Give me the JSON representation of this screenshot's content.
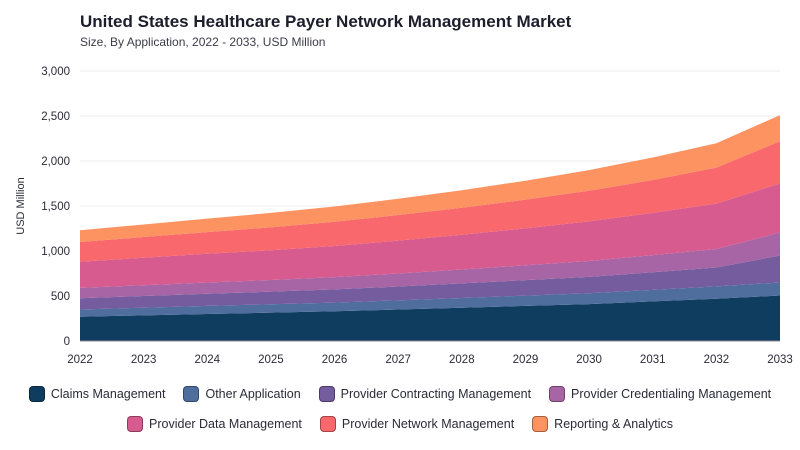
{
  "header": {
    "title": "United States Healthcare Payer Network Management Market",
    "subtitle": "Size, By Application, 2022 - 2033, USD Million"
  },
  "chart_data": {
    "type": "area",
    "stacked": true,
    "x": [
      "2022",
      "2023",
      "2024",
      "2025",
      "2026",
      "2027",
      "2028",
      "2029",
      "2030",
      "2031",
      "2032",
      "2033"
    ],
    "ylabel": "USD Million",
    "ylim": [
      0,
      3000
    ],
    "yticks": [
      "0",
      "500",
      "1,000",
      "1,500",
      "2,000",
      "2,500",
      "3,000"
    ],
    "grid": true,
    "legend_position": "bottom",
    "series": [
      {
        "name": "Claims Management",
        "color": "#0e3d5f",
        "values": [
          270,
          285,
          300,
          315,
          330,
          350,
          370,
          390,
          410,
          440,
          470,
          505
        ]
      },
      {
        "name": "Other Application",
        "color": "#4f6e9e",
        "values": [
          80,
          85,
          90,
          93,
          97,
          102,
          108,
          114,
          120,
          128,
          137,
          145
        ]
      },
      {
        "name": "Provider Contracting Management",
        "color": "#745c9f",
        "values": [
          125,
          130,
          135,
          140,
          146,
          153,
          162,
          172,
          183,
          196,
          210,
          300
        ]
      },
      {
        "name": "Provider Credentialing Management",
        "color": "#a865a6",
        "values": [
          115,
          120,
          125,
          130,
          137,
          145,
          155,
          165,
          176,
          190,
          205,
          255
        ]
      },
      {
        "name": "Provider Data Management",
        "color": "#d75b8f",
        "values": [
          290,
          305,
          320,
          330,
          345,
          365,
          385,
          410,
          440,
          470,
          505,
          545
        ]
      },
      {
        "name": "Provider Network Management",
        "color": "#f8686d",
        "values": [
          220,
          230,
          240,
          255,
          270,
          285,
          300,
          320,
          340,
          365,
          400,
          470
        ]
      },
      {
        "name": "Reporting & Analytics",
        "color": "#fc9361",
        "values": [
          130,
          140,
          150,
          160,
          170,
          180,
          195,
          210,
          230,
          250,
          270,
          290
        ]
      }
    ]
  }
}
